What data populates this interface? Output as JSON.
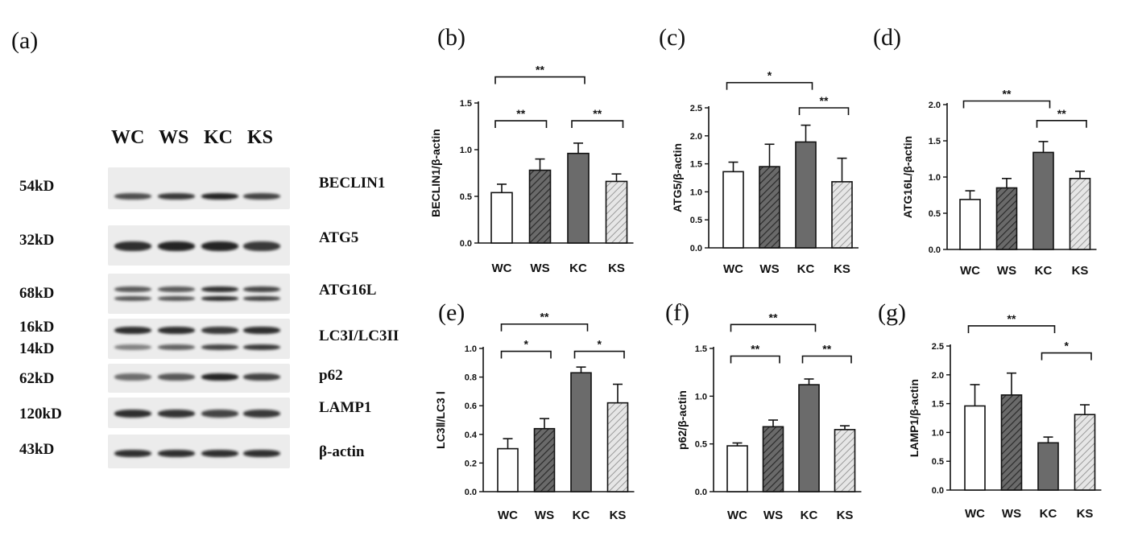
{
  "panels": {
    "a": "(a)",
    "b": "(b)",
    "c": "(c)",
    "d": "(d)",
    "e": "(e)",
    "f": "(f)",
    "g": "(g)"
  },
  "blot": {
    "lanes": [
      "WC",
      "WS",
      "KC",
      "KS"
    ],
    "rows": [
      {
        "kd": "54kD",
        "protein": "BECLIN1"
      },
      {
        "kd": "32kD",
        "protein": "ATG5"
      },
      {
        "kd": "68kD",
        "protein": "ATG16L"
      },
      {
        "kd": "16kD",
        "protein": "LC3I/LC3II"
      },
      {
        "kd": "14kD",
        "protein": ""
      },
      {
        "kd": "62kD",
        "protein": "p62"
      },
      {
        "kd": "120kD",
        "protein": "LAMP1"
      },
      {
        "kd": "43kD",
        "protein": "β-actin"
      }
    ],
    "band_intensity": {
      "BECLIN1": [
        0.75,
        0.85,
        0.95,
        0.8
      ],
      "ATG5": [
        0.9,
        0.95,
        0.95,
        0.85
      ],
      "ATG16L": [
        0.7,
        0.7,
        0.9,
        0.8
      ],
      "LC3I": [
        0.9,
        0.9,
        0.85,
        0.9
      ],
      "LC3II": [
        0.5,
        0.65,
        0.8,
        0.85
      ],
      "p62": [
        0.6,
        0.7,
        0.95,
        0.8
      ],
      "LAMP1": [
        0.9,
        0.88,
        0.8,
        0.85
      ],
      "beta_actin": [
        0.9,
        0.9,
        0.9,
        0.9
      ]
    }
  },
  "colors": {
    "WC": "#ffffff",
    "WS": "#555555",
    "KC": "#6b6b6b",
    "KS": "#d0d0d0",
    "stroke": "#111111"
  },
  "chart_data": [
    {
      "id": "b",
      "type": "bar",
      "categories": [
        "WC",
        "WS",
        "KC",
        "KS"
      ],
      "values": [
        0.54,
        0.78,
        0.96,
        0.66
      ],
      "errors": [
        0.09,
        0.12,
        0.11,
        0.08
      ],
      "ylabel": "BECLIN1/β-actin",
      "ylim": [
        0,
        1.5
      ],
      "ticks": [
        "0.0",
        "0.5",
        "1.0",
        "1.5"
      ],
      "significance": [
        {
          "from": 0,
          "to": 2,
          "label": "**",
          "y": 1.78
        },
        {
          "from": 0,
          "to": 1,
          "label": "**",
          "y": 1.31
        },
        {
          "from": 2,
          "to": 3,
          "label": "**",
          "y": 1.31
        }
      ]
    },
    {
      "id": "c",
      "type": "bar",
      "categories": [
        "WC",
        "WS",
        "KC",
        "KS"
      ],
      "values": [
        1.36,
        1.45,
        1.89,
        1.18
      ],
      "errors": [
        0.17,
        0.4,
        0.3,
        0.42
      ],
      "ylabel": "ATG5/β-actin",
      "ylim": [
        0,
        2.5
      ],
      "ticks": [
        "0.0",
        "0.5",
        "1.0",
        "1.5",
        "2.0",
        "2.5"
      ],
      "significance": [
        {
          "from": 0,
          "to": 2,
          "label": "*",
          "y": 2.95
        },
        {
          "from": 2,
          "to": 3,
          "label": "**",
          "y": 2.5
        }
      ]
    },
    {
      "id": "d",
      "type": "bar",
      "categories": [
        "WC",
        "WS",
        "KC",
        "KS"
      ],
      "values": [
        0.69,
        0.85,
        1.34,
        0.98
      ],
      "errors": [
        0.12,
        0.13,
        0.15,
        0.1
      ],
      "ylabel": "ATG16L/β-actin",
      "ylim": [
        0,
        2.0
      ],
      "ticks": [
        "0.0",
        "0.5",
        "1.0",
        "1.5",
        "2.0"
      ],
      "significance": [
        {
          "from": 0,
          "to": 2,
          "label": "**",
          "y": 2.05
        },
        {
          "from": 2,
          "to": 3,
          "label": "**",
          "y": 1.78
        }
      ]
    },
    {
      "id": "e",
      "type": "bar",
      "categories": [
        "WC",
        "WS",
        "KC",
        "KS"
      ],
      "values": [
        0.3,
        0.44,
        0.83,
        0.62
      ],
      "errors": [
        0.07,
        0.07,
        0.04,
        0.13
      ],
      "ylabel": "LC3Ⅱ/LC3 Ⅰ",
      "ylim": [
        0,
        1.0
      ],
      "ticks": [
        "0.0",
        "0.2",
        "0.4",
        "0.6",
        "0.8",
        "1.0"
      ],
      "significance": [
        {
          "from": 0,
          "to": 2,
          "label": "**",
          "y": 1.17
        },
        {
          "from": 0,
          "to": 1,
          "label": "*",
          "y": 0.98
        },
        {
          "from": 2,
          "to": 3,
          "label": "*",
          "y": 0.98
        }
      ]
    },
    {
      "id": "f",
      "type": "bar",
      "categories": [
        "WC",
        "WS",
        "KC",
        "KS"
      ],
      "values": [
        0.48,
        0.68,
        1.12,
        0.65
      ],
      "errors": [
        0.03,
        0.07,
        0.06,
        0.04
      ],
      "ylabel": "p62/β-actin",
      "ylim": [
        0,
        1.5
      ],
      "ticks": [
        "0.0",
        "0.5",
        "1.0",
        "1.5"
      ],
      "significance": [
        {
          "from": 0,
          "to": 2,
          "label": "**",
          "y": 1.75
        },
        {
          "from": 0,
          "to": 1,
          "label": "**",
          "y": 1.42
        },
        {
          "from": 2,
          "to": 3,
          "label": "**",
          "y": 1.42
        }
      ]
    },
    {
      "id": "g",
      "type": "bar",
      "categories": [
        "WC",
        "WS",
        "KC",
        "KS"
      ],
      "values": [
        1.46,
        1.65,
        0.82,
        1.31
      ],
      "errors": [
        0.37,
        0.38,
        0.1,
        0.17
      ],
      "ylabel": "LAMP1/β-actin",
      "ylim": [
        0,
        2.5
      ],
      "ticks": [
        "0.0",
        "0.5",
        "1.0",
        "1.5",
        "2.0",
        "2.5"
      ],
      "significance": [
        {
          "from": 0,
          "to": 2,
          "label": "**",
          "y": 2.85
        },
        {
          "from": 2,
          "to": 3,
          "label": "*",
          "y": 2.38
        }
      ]
    }
  ]
}
